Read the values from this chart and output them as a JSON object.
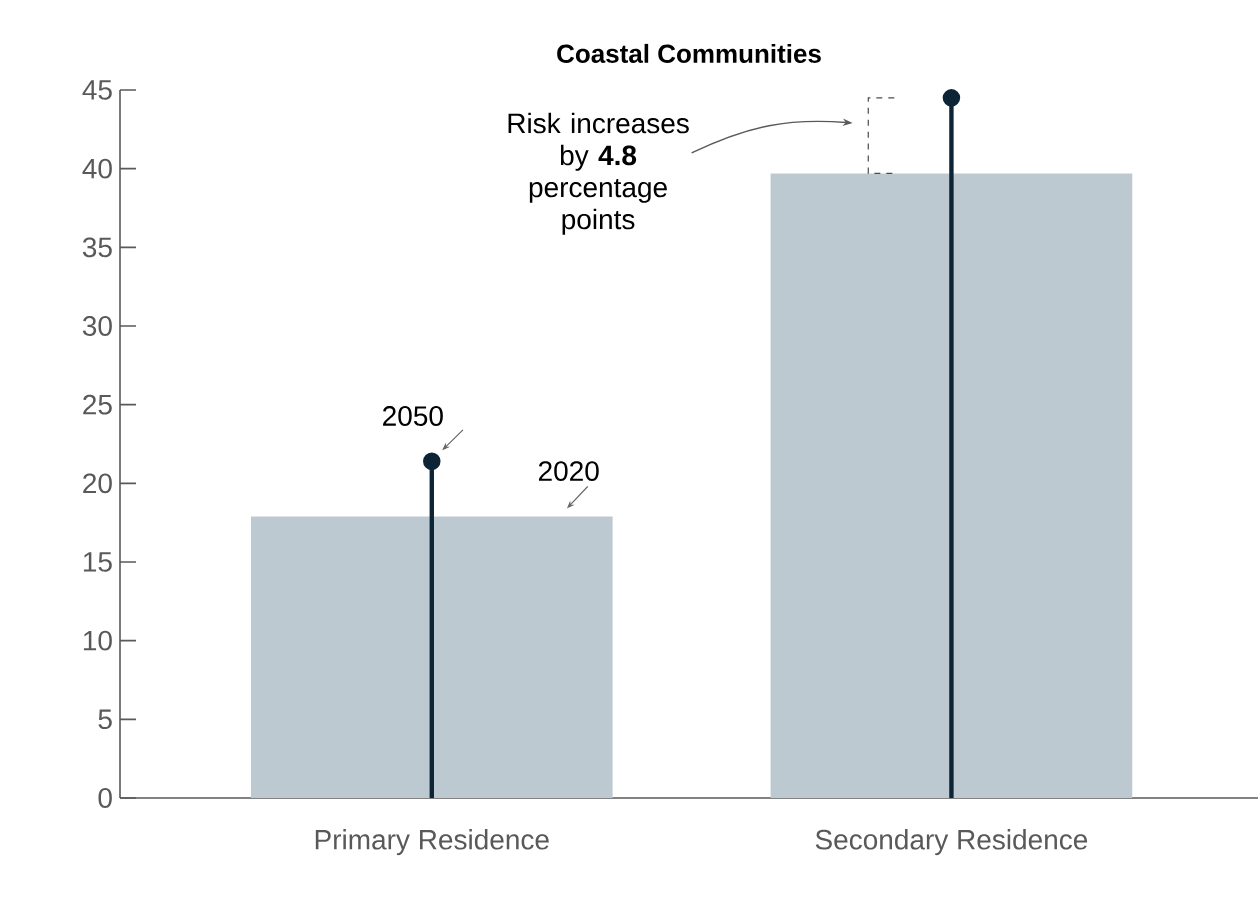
{
  "chart_data": {
    "type": "bar",
    "title": "Coastal Communities",
    "categories": [
      "Primary Residence",
      "Secondary Residence"
    ],
    "series": [
      {
        "name": "2020",
        "color": "#bdc9d1",
        "values": [
          17.9,
          39.7
        ]
      },
      {
        "name": "2050",
        "type": "lollipop",
        "color": "#0d2436",
        "values": [
          21.4,
          44.5
        ]
      }
    ],
    "ylim": [
      0,
      45
    ],
    "yticks": [
      0,
      5,
      10,
      15,
      20,
      25,
      30,
      35,
      40,
      45
    ],
    "annotations": [
      "Risk increases by **4.8** percentage points"
    ]
  }
}
